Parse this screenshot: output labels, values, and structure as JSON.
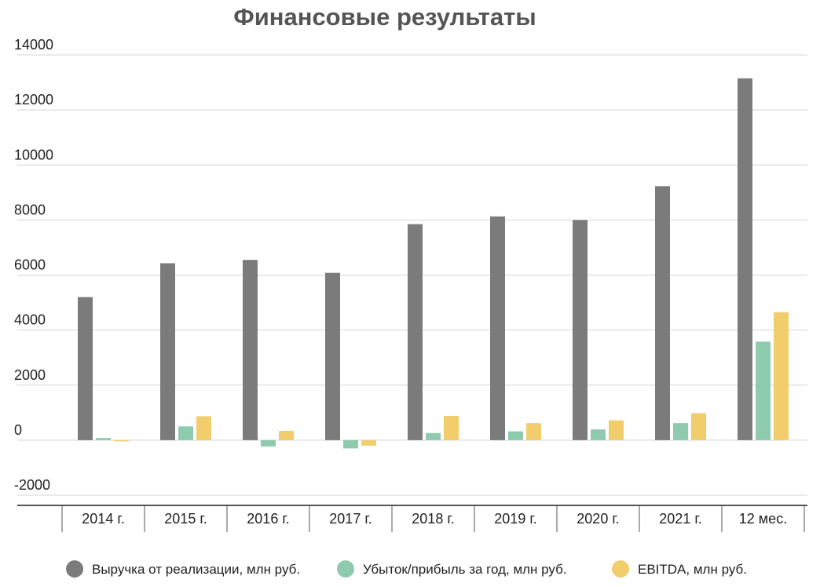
{
  "chart_data": {
    "type": "bar",
    "title": "Финансовые результаты",
    "xlabel": "",
    "ylabel": "",
    "ylim": [
      -2000,
      14000
    ],
    "yticks": [
      -2000,
      0,
      2000,
      4000,
      6000,
      8000,
      10000,
      12000,
      14000
    ],
    "grid": true,
    "legend_position": "bottom",
    "categories": [
      "2014 г.",
      "2015 г.",
      "2016 г.",
      "2017 г.",
      "2018 г.",
      "2019 г.",
      "2020 г.",
      "2021 г.",
      "12 мес."
    ],
    "series": [
      {
        "name": "Выручка от реализации, млн руб.",
        "color": "#7b7b7b",
        "values": [
          5200,
          6430,
          6550,
          6080,
          7850,
          8130,
          8000,
          9230,
          13150
        ]
      },
      {
        "name": "Убыток/прибыль за год, млн руб.",
        "color": "#8ecbae",
        "values": [
          80,
          500,
          -230,
          -300,
          260,
          320,
          390,
          620,
          3580
        ]
      },
      {
        "name": "EBITDA, млн руб.",
        "color": "#f2cd6c",
        "values": [
          -20,
          870,
          340,
          -200,
          880,
          620,
          720,
          980,
          4650
        ]
      }
    ]
  }
}
